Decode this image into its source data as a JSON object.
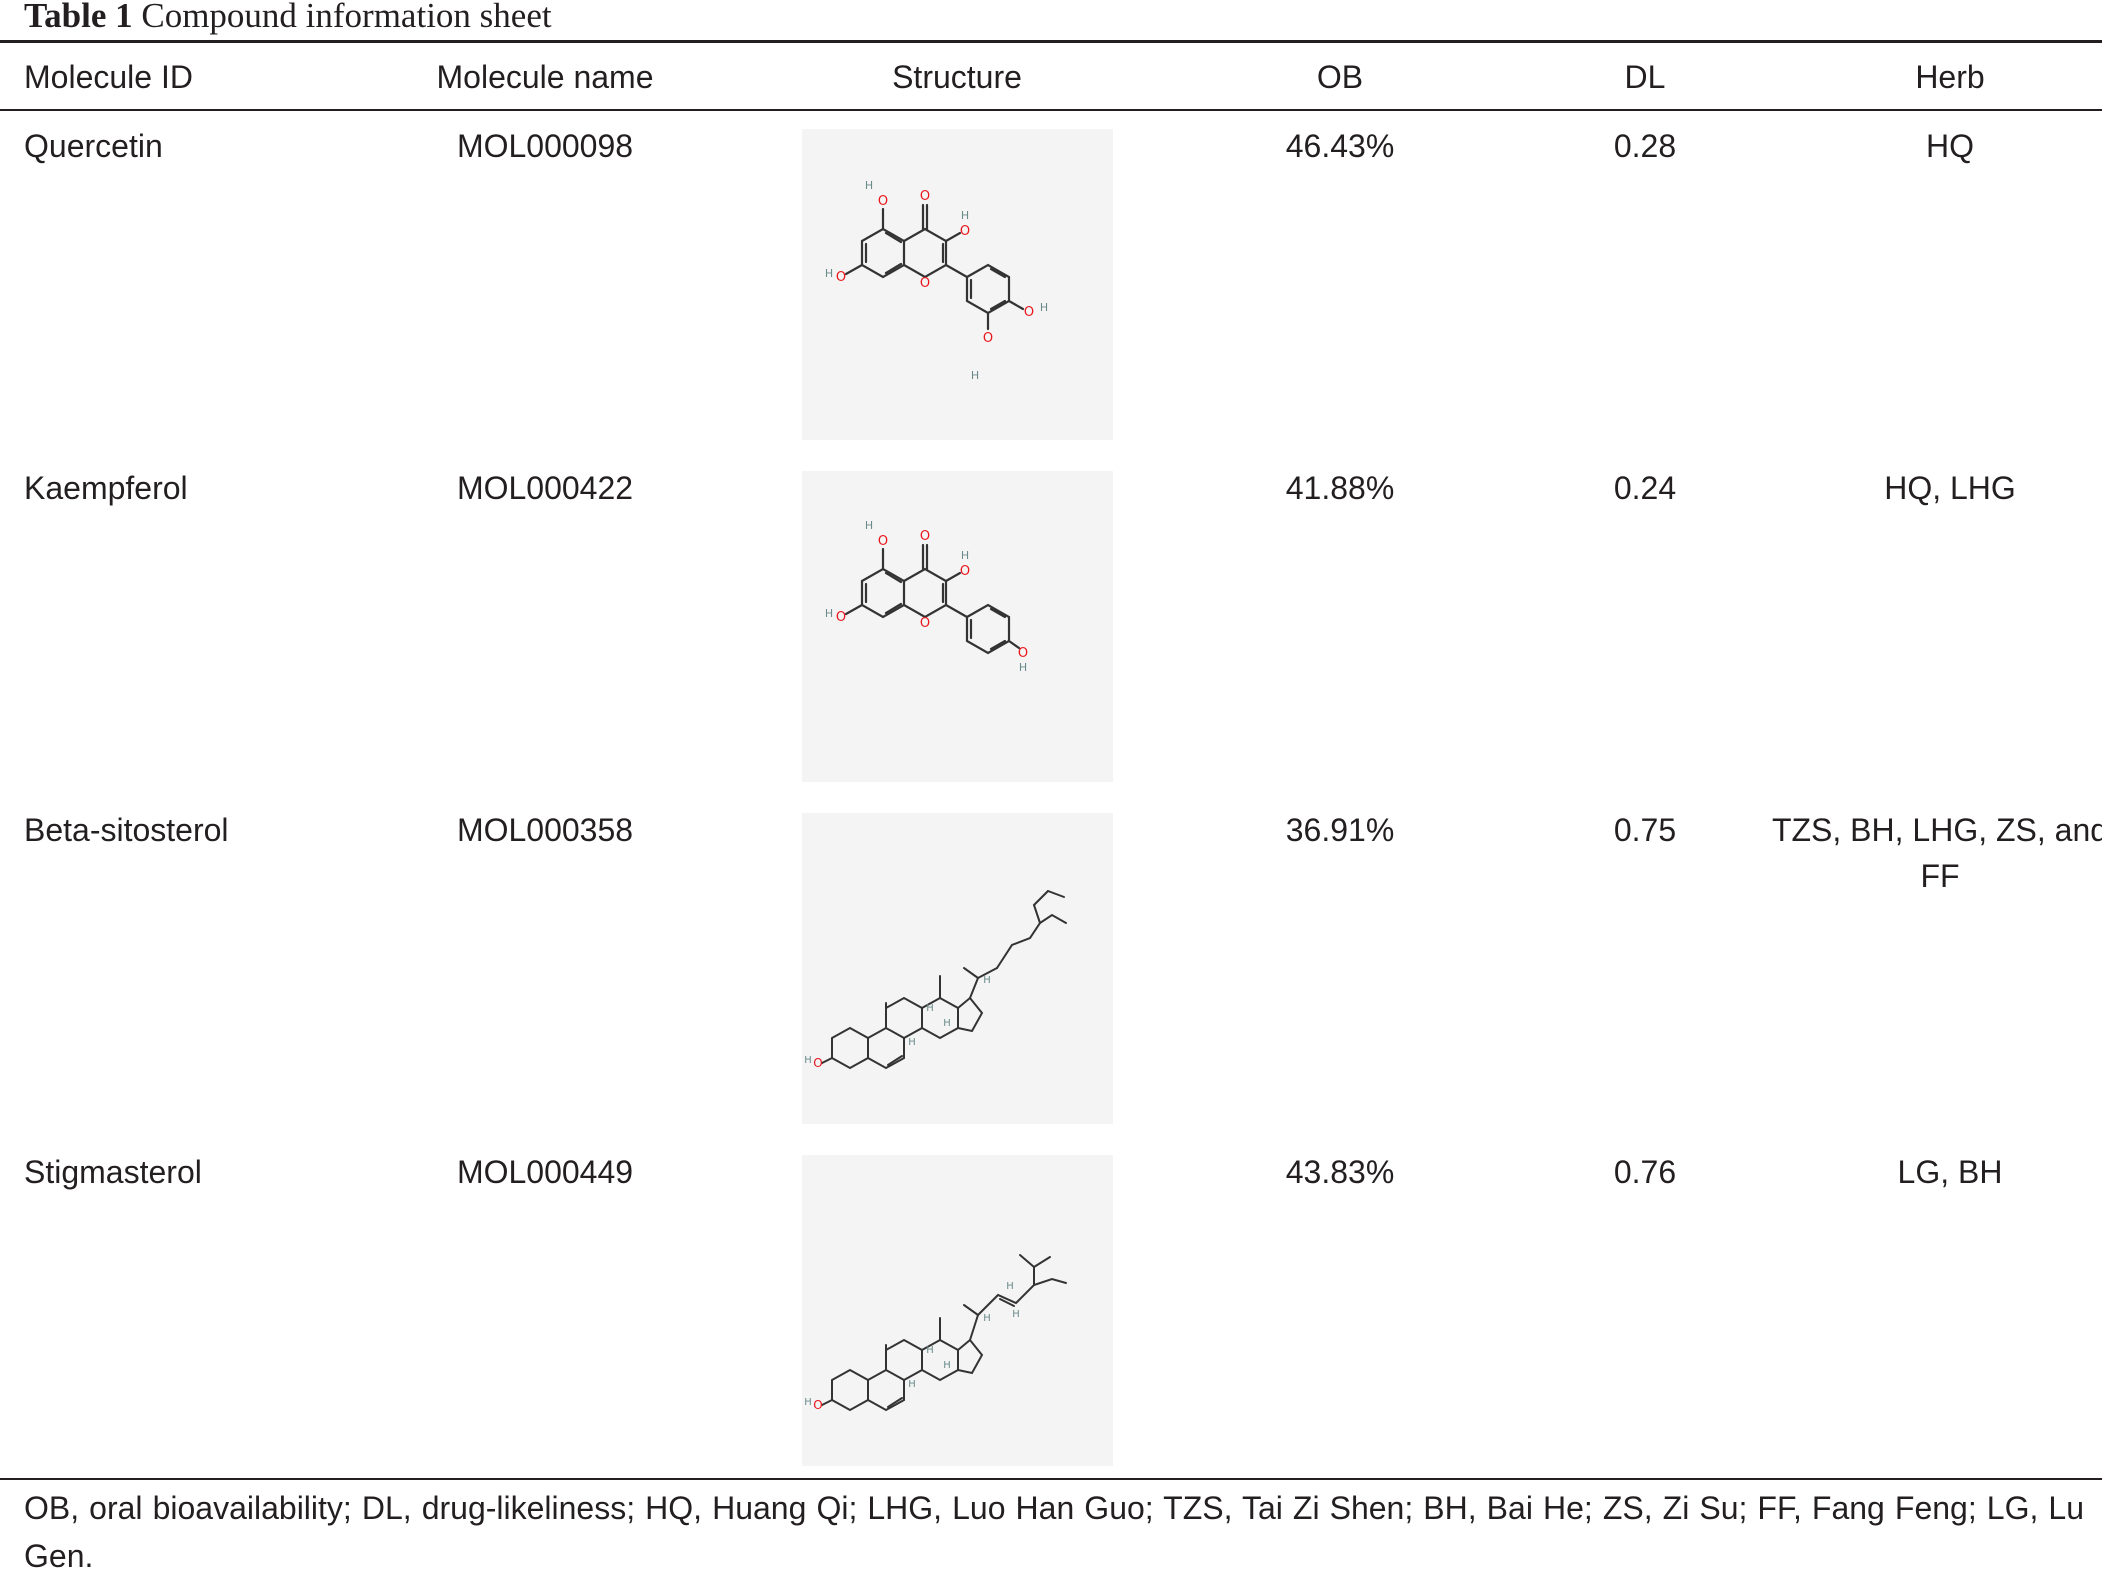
{
  "caption": {
    "label": "Table 1",
    "text": "Compound information sheet"
  },
  "headers": {
    "molecule_id": "Molecule ID",
    "molecule_name": "Molecule name",
    "structure": "Structure",
    "ob": "OB",
    "dl": "DL",
    "herb": "Herb"
  },
  "rows": [
    {
      "id": "Quercetin",
      "name": "MOL000098",
      "ob": "46.43%",
      "dl": "0.28",
      "herb": "HQ",
      "structure_icon": "quercetin-structure-icon"
    },
    {
      "id": "Kaempferol",
      "name": "MOL000422",
      "ob": "41.88%",
      "dl": "0.24",
      "herb": "HQ, LHG",
      "structure_icon": "kaempferol-structure-icon"
    },
    {
      "id": "Beta-sitosterol",
      "name": "MOL000358",
      "ob": "36.91%",
      "dl": "0.75",
      "herb": "TZS, BH, LHG, ZS, and FF",
      "structure_icon": "beta-sitosterol-structure-icon"
    },
    {
      "id": "Stigmasterol",
      "name": "MOL000449",
      "ob": "43.83%",
      "dl": "0.76",
      "herb": "LG, BH",
      "structure_icon": "stigmasterol-structure-icon"
    }
  ],
  "atom_labels": {
    "oxygen": "O",
    "hydrogen": "H"
  },
  "footnote": "OB, oral bioavailability; DL, drug-likeliness; HQ, Huang Qi; LHG, Luo Han Guo; TZS, Tai Zi Shen; BH, Bai He; ZS, Zi Su; FF, Fang Feng; LG, Lu Gen.",
  "colors": {
    "oxygen": "#e8161c",
    "hydrogen": "#6a8a8a",
    "bond": "#333333",
    "structure_bg": "#f4f4f4"
  }
}
